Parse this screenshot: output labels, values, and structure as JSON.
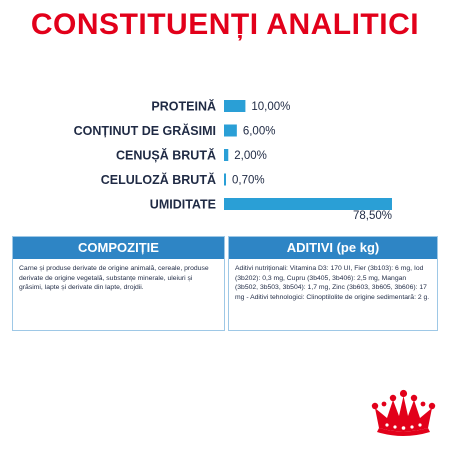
{
  "heading": "CONSTITUENȚI ANALITICI",
  "chart_data": {
    "type": "bar",
    "orientation": "horizontal",
    "title": "",
    "categories": [
      "PROTEINĂ",
      "CONȚINUT DE GRĂSIMI",
      "CENUȘĂ BRUTĂ",
      "CELULOZĂ BRUTĂ",
      "UMIDITATE"
    ],
    "values": [
      10.0,
      6.0,
      2.0,
      0.7,
      78.5
    ],
    "value_labels": [
      "10,00%",
      "6,00%",
      "2,00%",
      "0,70%",
      "78,50%"
    ],
    "xlim": [
      0,
      100
    ],
    "bar_color": "#2a9fd6",
    "grid": false,
    "legend": "none"
  },
  "composition": {
    "header": "COMPOZIȚIE",
    "text": "Carne și produse derivate de origine animală, cereale, produse derivate de origine vegetală, substanțe minerale, uleiuri și grăsimi, lapte și derivate din lapte, drojdii."
  },
  "additives": {
    "header": "ADITIVI (pe kg)",
    "text": "Aditivi nutriționali: Vitamina D3: 170 UI, Fier (3b103): 6 mg, Iod (3b202): 0,3 mg, Cupru (3b405, 3b406): 2,5 mg, Mangan (3b502, 3b503, 3b504): 1,7 mg, Zinc (3b603, 3b605, 3b606): 17 mg - Aditivi tehnologici: Clinoptilolite de origine sedimentară: 2 g."
  },
  "brand": {
    "logo_icon": "royal-canin-crown-icon",
    "accent_color": "#e2001a"
  }
}
